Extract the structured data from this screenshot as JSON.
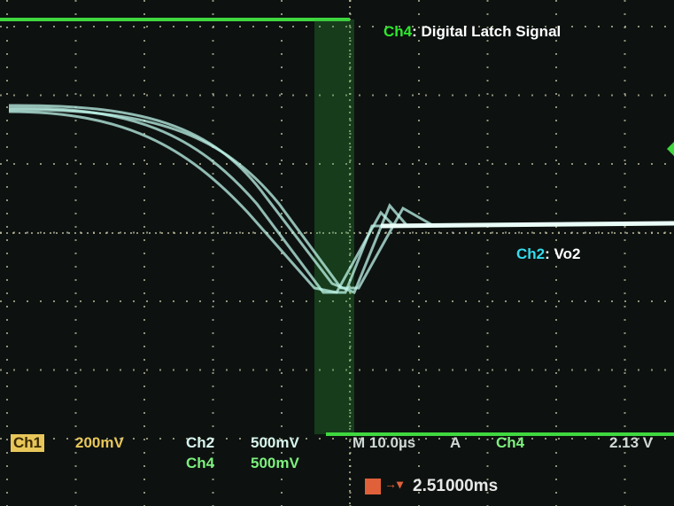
{
  "annotations": [
    {
      "channel": "Ch4",
      "label": ": Digital Latch Signal"
    },
    {
      "channel": "Ch2",
      "label": ": Vo2"
    }
  ],
  "readout": {
    "ch1": {
      "name": "Ch1",
      "scale": "200mV"
    },
    "ch2": {
      "name": "Ch2",
      "scale": "500mV"
    },
    "ch4": {
      "name": "Ch4",
      "scale": "500mV"
    },
    "timebase": "M 10.0µs",
    "trigger_mode": "A",
    "trigger_source": "Ch4",
    "trigger_level": "2.13 V",
    "trigger_position": "2.51000ms"
  }
}
